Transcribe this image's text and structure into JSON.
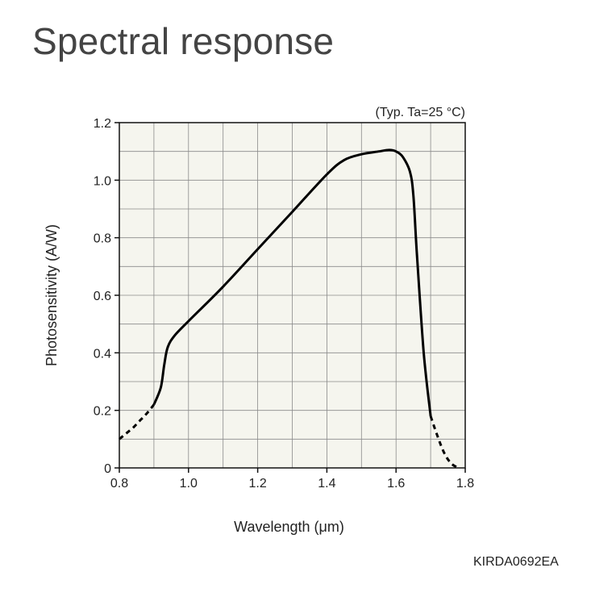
{
  "page": {
    "title": "Spectral response",
    "code": "KIRDA0692EA"
  },
  "chart_data": {
    "type": "line",
    "title": "Spectral response",
    "condition_note": "(Typ. Ta=25 °C)",
    "xlabel": "Wavelength (μm)",
    "ylabel": "Photosensitivity (A/W)",
    "xlim": [
      0.8,
      1.8
    ],
    "ylim": [
      0,
      1.2
    ],
    "x_ticks": [
      "0.8",
      "1.0",
      "1.2",
      "1.4",
      "1.6",
      "1.8"
    ],
    "y_ticks": [
      "0",
      "0.2",
      "0.4",
      "0.6",
      "0.8",
      "1.0",
      "1.2"
    ],
    "grid": true,
    "series": [
      {
        "style": "dashed",
        "x": [
          0.8,
          0.82,
          0.84,
          0.86,
          0.88,
          0.9
        ],
        "y": [
          0.1,
          0.12,
          0.14,
          0.165,
          0.19,
          0.22
        ]
      },
      {
        "style": "solid",
        "x": [
          0.9,
          0.92,
          0.93,
          0.94,
          0.96,
          1.0,
          1.1,
          1.2,
          1.3,
          1.4,
          1.45,
          1.5,
          1.55,
          1.58,
          1.6,
          1.62,
          1.64,
          1.65,
          1.66,
          1.68,
          1.7
        ],
        "y": [
          0.22,
          0.28,
          0.36,
          0.42,
          0.46,
          0.51,
          0.63,
          0.76,
          0.89,
          1.02,
          1.07,
          1.09,
          1.1,
          1.105,
          1.1,
          1.08,
          1.03,
          0.95,
          0.75,
          0.4,
          0.18
        ]
      },
      {
        "style": "dashed",
        "x": [
          1.7,
          1.72,
          1.74,
          1.76,
          1.78
        ],
        "y": [
          0.18,
          0.11,
          0.05,
          0.015,
          0.0
        ]
      }
    ]
  }
}
